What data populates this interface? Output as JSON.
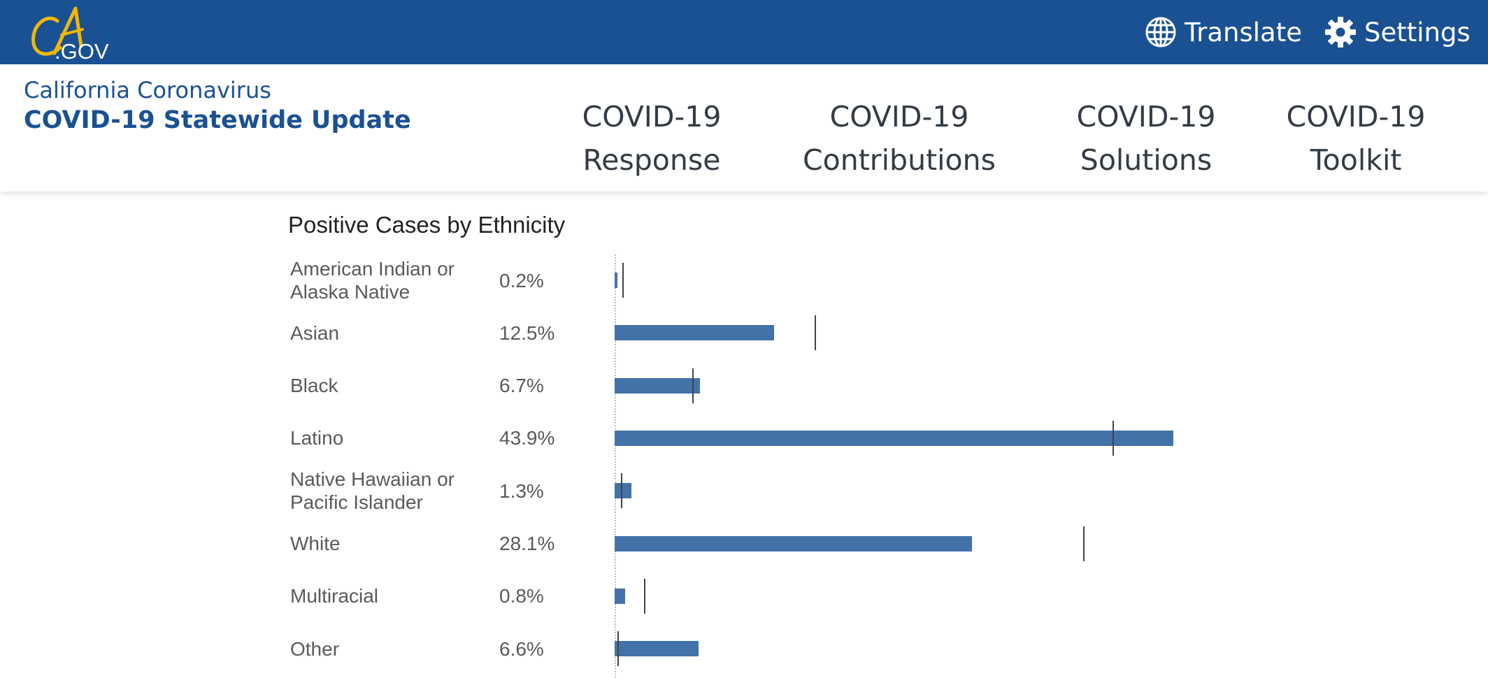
{
  "brand": {
    "logo_text": ".GOV",
    "subtitle": "California Coronavirus",
    "title": "COVID-19 Statewide Update"
  },
  "utility": {
    "translate_label": "Translate",
    "settings_label": "Settings",
    "translate_icon": "globe-icon",
    "settings_icon": "gear-icon"
  },
  "nav": [
    {
      "line1": "COVID-19",
      "line2": "Response"
    },
    {
      "line1": "COVID-19",
      "line2": "Contributions"
    },
    {
      "line1": "COVID-19",
      "line2": "Solutions"
    },
    {
      "line1": "COVID-19",
      "line2": "Toolkit"
    }
  ],
  "colors": {
    "topbar": "#1a5192",
    "brand": "#1a5192",
    "logo_accent": "#f2b705",
    "bar": "#4272a8",
    "tick": "#444444"
  },
  "chart_data": {
    "type": "bar",
    "orientation": "horizontal",
    "title": "Positive Cases by Ethnicity",
    "categories": [
      "American Indian or Alaska Native",
      "Asian",
      "Black",
      "Latino",
      "Native Hawaiian or Pacific Islander",
      "White",
      "Multiracial",
      "Other"
    ],
    "value_labels": [
      "0.2%",
      "12.5%",
      "6.7%",
      "43.9%",
      "1.3%",
      "28.1%",
      "0.8%",
      "6.6%"
    ],
    "series": [
      {
        "values": [
          0.2,
          12.5,
          6.7,
          43.9,
          1.3,
          28.1,
          0.8,
          6.6
        ]
      }
    ],
    "reference_markers": [
      0.6,
      15.7,
      6.1,
      39.1,
      0.5,
      36.8,
      2.3,
      0.2
    ],
    "xlim": [
      0,
      50
    ]
  }
}
